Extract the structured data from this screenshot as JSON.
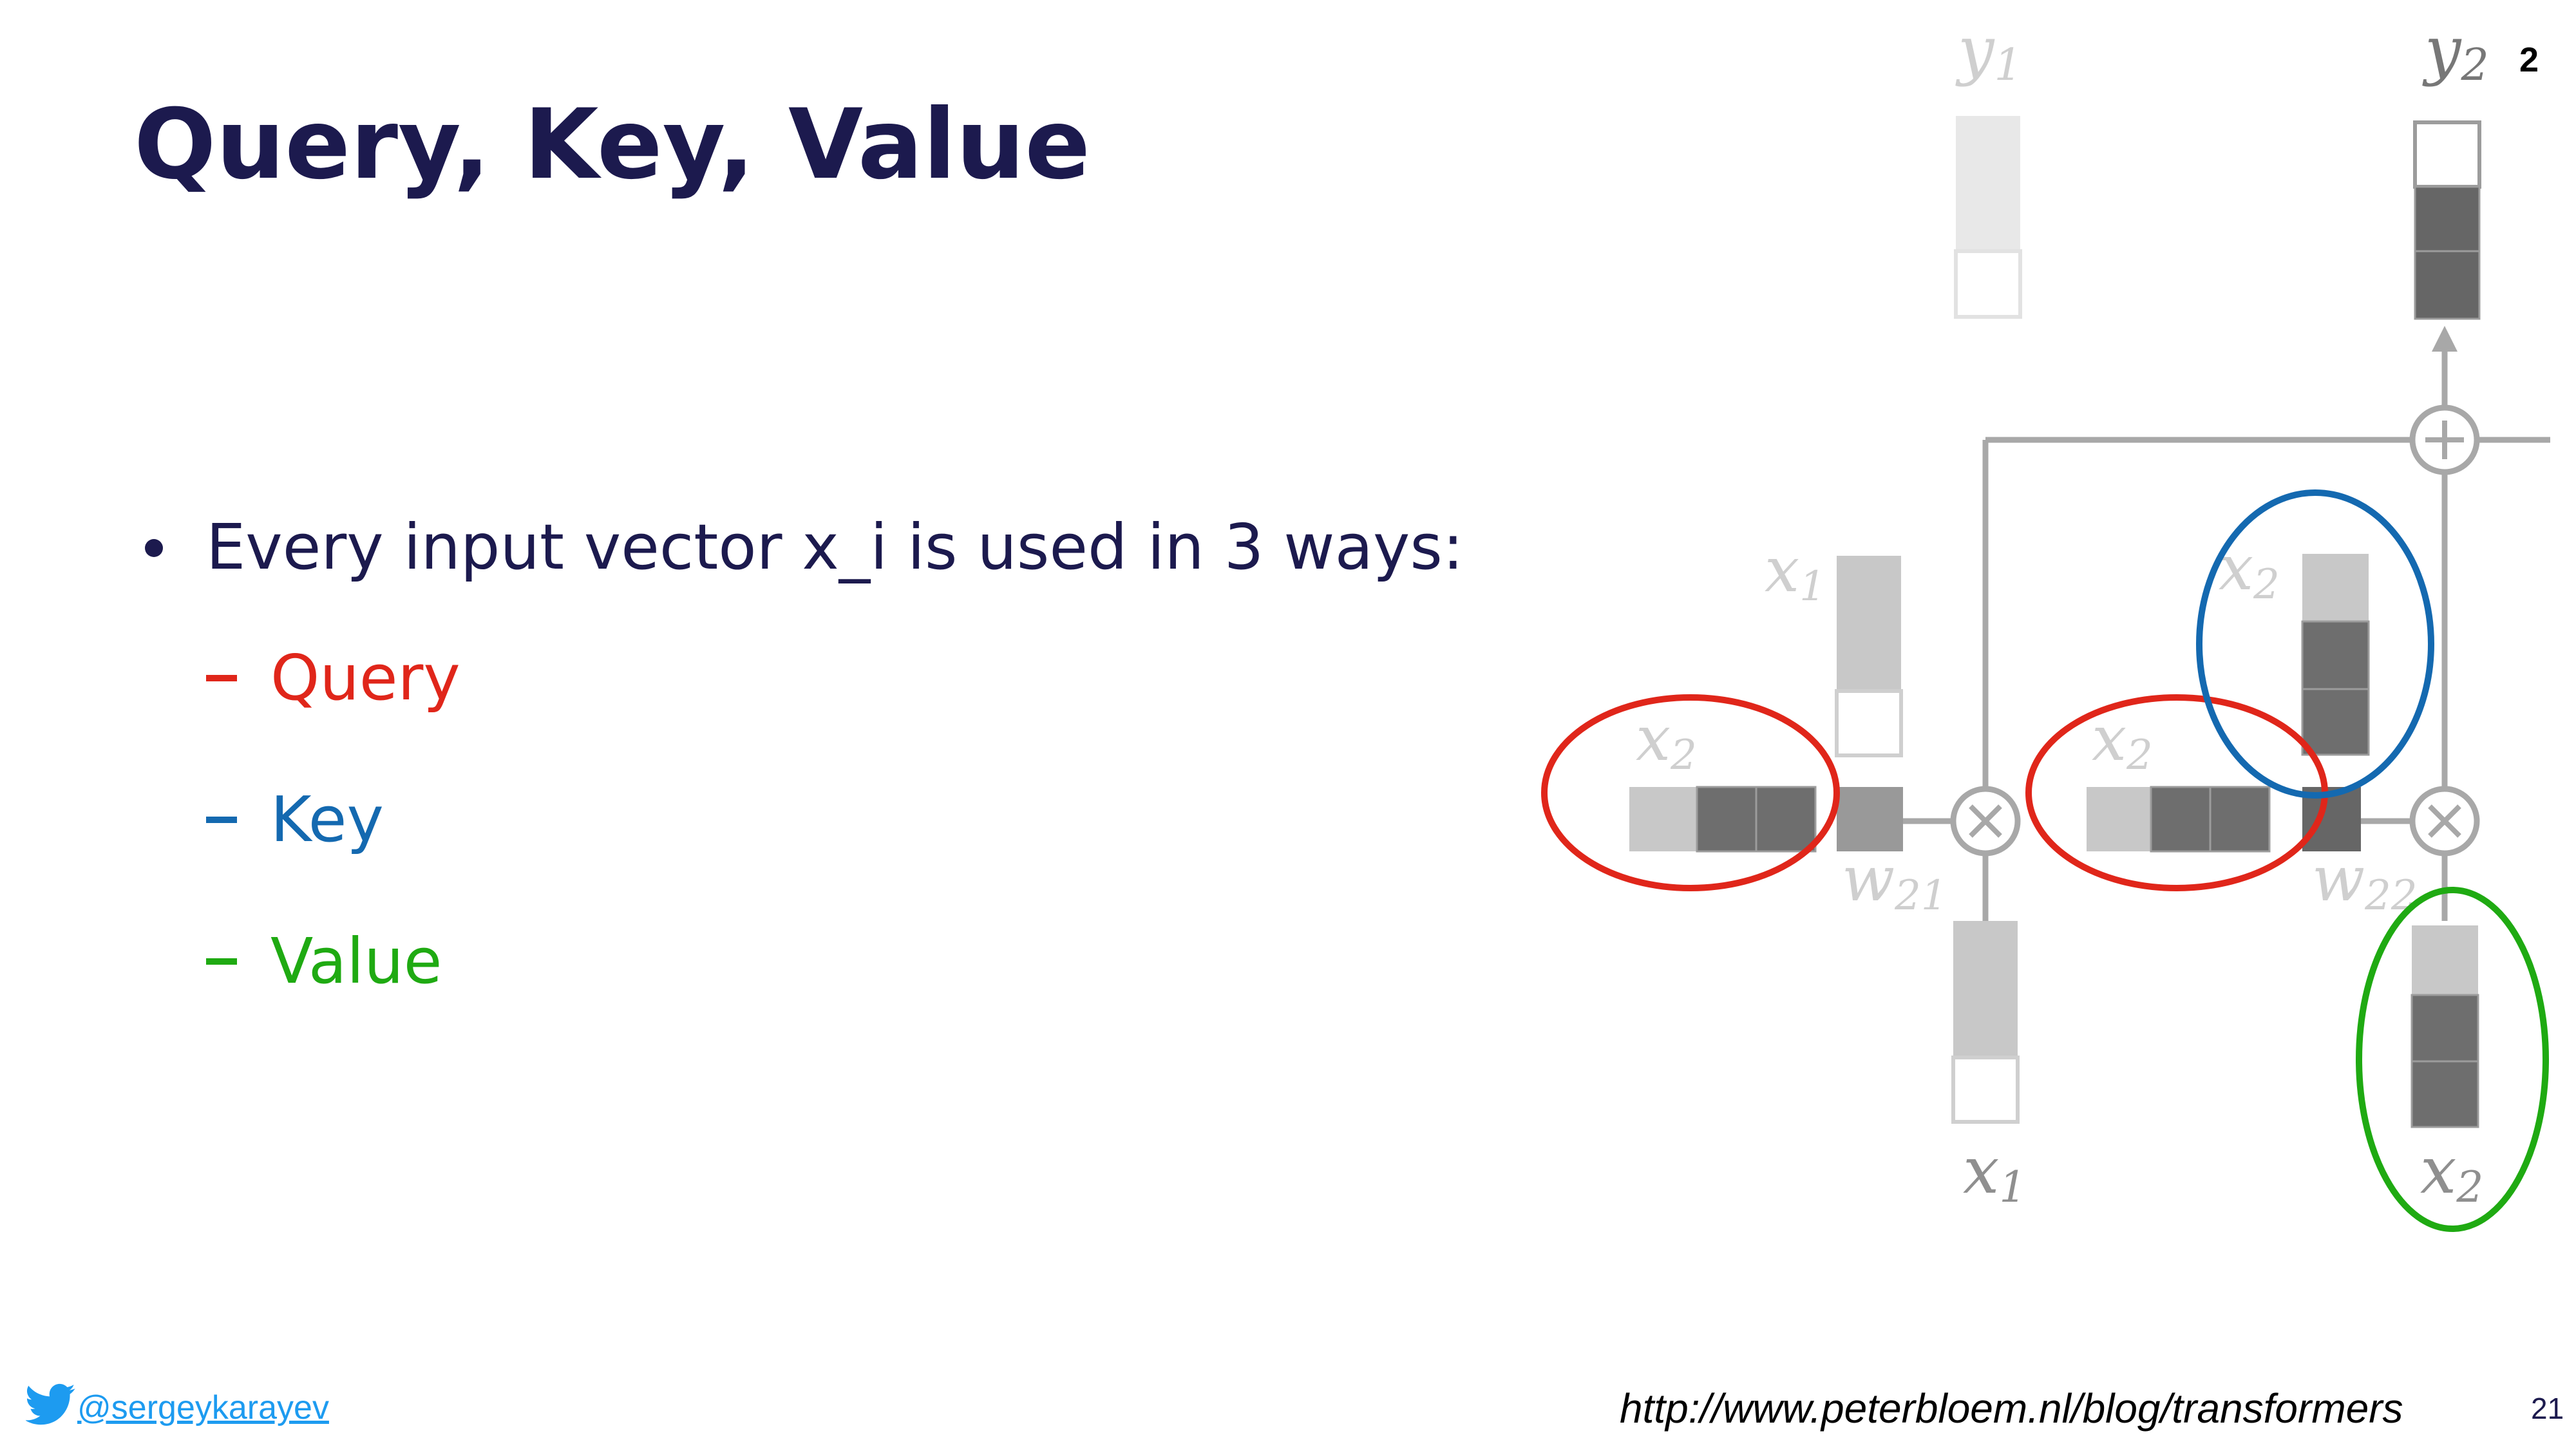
{
  "slide": {
    "title": "Query, Key, Value",
    "bullet": "Every input vector x_i is used in 3 ways:",
    "subitems": [
      {
        "label": "Query",
        "color": "#e0261a"
      },
      {
        "label": "Key",
        "color": "#1469b0"
      },
      {
        "label": "Value",
        "color": "#1faa12"
      }
    ],
    "corner_number": "2",
    "slide_number": "21"
  },
  "footer": {
    "twitter_handle": "@sergeykarayev",
    "source_url": "http://www.peterbloem.nl/blog/transformers"
  },
  "diagram": {
    "label_y1_var": "y",
    "label_y1_sub": "1",
    "label_y2_var": "y",
    "label_y2_sub": "2",
    "label_x1_top_var": "x",
    "label_x1_top_sub": "1",
    "label_x2_left_var": "x",
    "label_x2_left_sub": "2",
    "label_x2_mid_var": "x",
    "label_x2_mid_sub": "2",
    "label_x2_top_var": "x",
    "label_x2_top_sub": "2",
    "label_w21_var": "w",
    "label_w21_sub": "21",
    "label_w22_var": "w",
    "label_w22_sub": "22",
    "label_x1_bottom_var": "x",
    "label_x1_bottom_sub": "1",
    "label_x2_bottom_var": "x",
    "label_x2_bottom_sub": "2",
    "highlight_colors": {
      "query": "#e0261a",
      "key": "#1469b0",
      "value": "#1faa12"
    }
  }
}
